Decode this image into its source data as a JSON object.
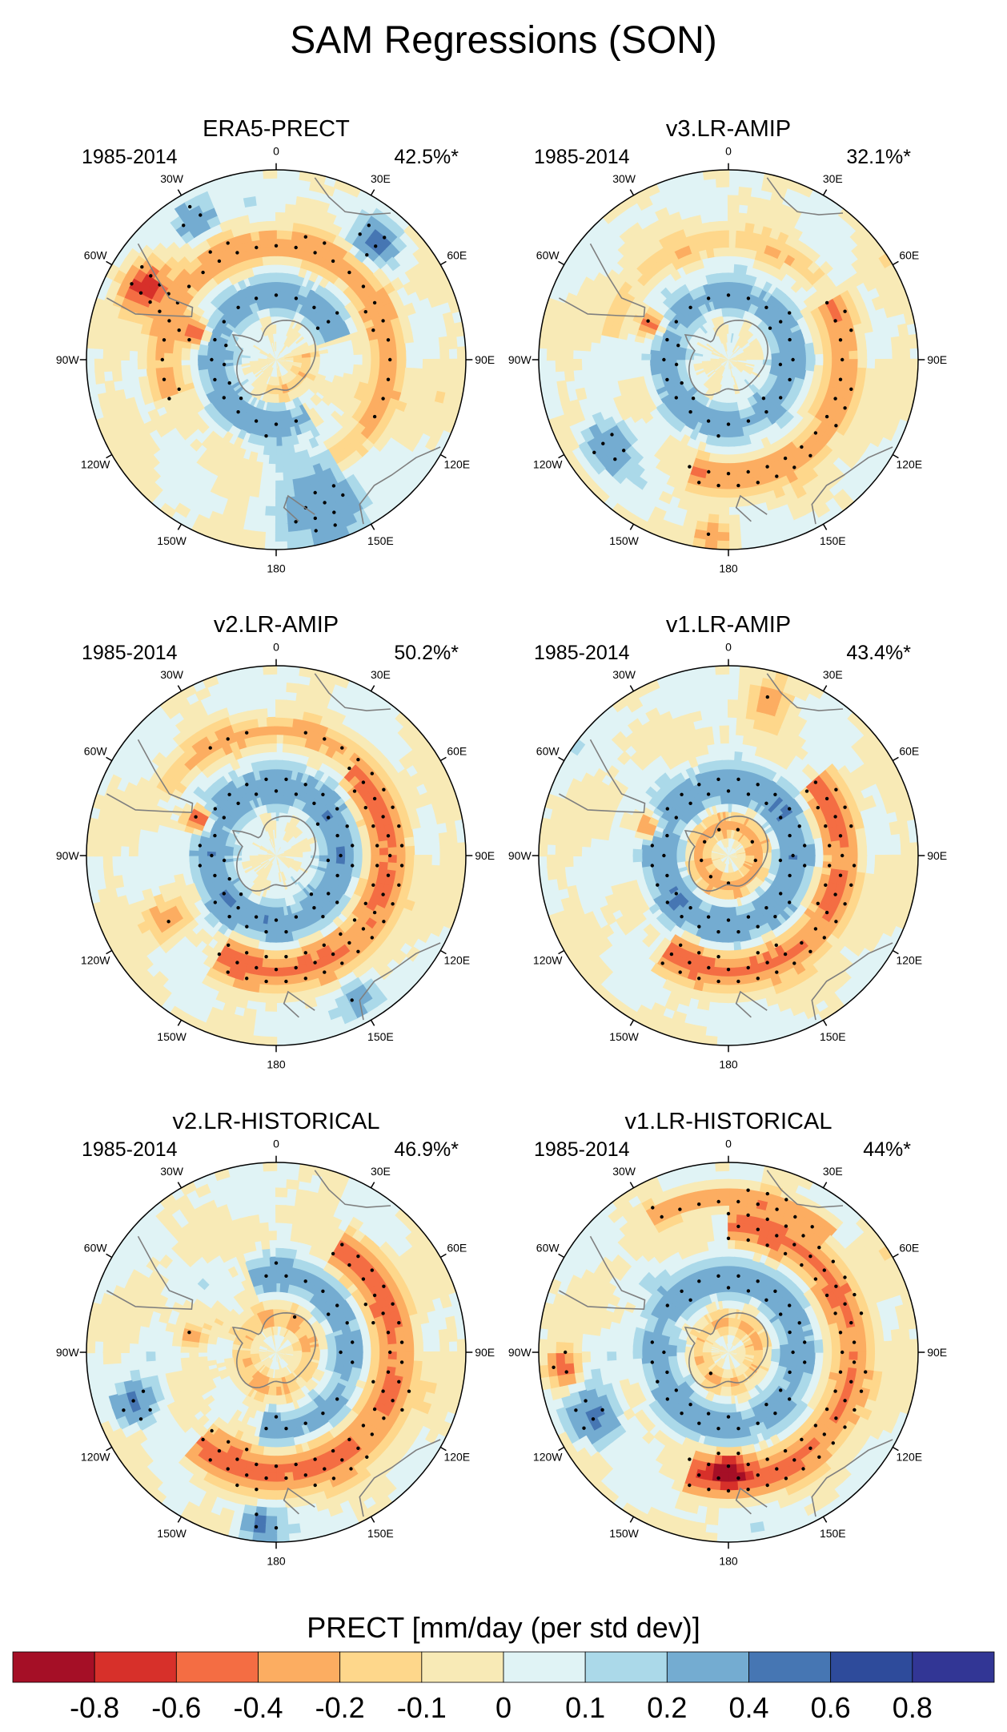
{
  "figure": {
    "title": "SAM Regressions (SON)",
    "colorbar_label": "PRECT [mm/day (per std dev)]"
  },
  "longitude_labels": [
    "0",
    "30E",
    "60E",
    "90E",
    "120E",
    "150E",
    "180",
    "150W",
    "120W",
    "90W",
    "60W",
    "30W"
  ],
  "chart_data": {
    "type": "polar-stereographic-contour-map",
    "variable": "PRECT",
    "units": "mm/day (per std dev)",
    "hemisphere": "South",
    "colorbar": {
      "levels": [
        "-0.8",
        "-0.6",
        "-0.4",
        "-0.2",
        "-0.1",
        "0",
        "0.1",
        "0.2",
        "0.4",
        "0.6",
        "0.8"
      ],
      "colors": [
        "#a50f26",
        "#d7302a",
        "#f46d43",
        "#fcad61",
        "#fed78b",
        "#f8eab6",
        "#e0f3f5",
        "#abd9e9",
        "#74acd1",
        "#4676b3",
        "#2e4b9b",
        "#323695"
      ]
    },
    "panels": [
      {
        "name": "ERA5-PRECT",
        "period": "1985-2014",
        "variance": "42.5%*",
        "features": [
          {
            "kind": "ring",
            "r": 0.33,
            "w": 0.22,
            "value": 0.3,
            "start": 150,
            "end": 70
          },
          {
            "kind": "ring",
            "r": 0.6,
            "w": 0.2,
            "value": -0.3,
            "start": 250,
            "end": 150
          },
          {
            "kind": "ring",
            "r": 0.16,
            "w": 0.13,
            "value": -0.2,
            "start": 80,
            "end": 200
          },
          {
            "kind": "blob",
            "lon": 300,
            "r": 0.8,
            "size": 0.14,
            "value": -0.75
          },
          {
            "kind": "blob",
            "lon": 288,
            "r": 0.45,
            "size": 0.07,
            "value": -0.6
          },
          {
            "kind": "blob",
            "lon": 160,
            "r": 0.78,
            "size": 0.28,
            "value": 0.35
          },
          {
            "kind": "blob",
            "lon": 40,
            "r": 0.82,
            "size": 0.14,
            "value": 0.4
          },
          {
            "kind": "blob",
            "lon": 330,
            "r": 0.85,
            "size": 0.12,
            "value": 0.4
          }
        ]
      },
      {
        "name": "v3.LR-AMIP",
        "period": "1985-2014",
        "variance": "32.1%*",
        "features": [
          {
            "kind": "ring",
            "r": 0.33,
            "w": 0.22,
            "value": 0.3,
            "start": 0,
            "end": 360
          },
          {
            "kind": "ring",
            "r": 0.62,
            "w": 0.2,
            "value": -0.35,
            "start": 60,
            "end": 200
          },
          {
            "kind": "ring",
            "r": 0.62,
            "w": 0.16,
            "value": -0.15,
            "start": 280,
            "end": 50
          },
          {
            "kind": "blob",
            "lon": 295,
            "r": 0.45,
            "size": 0.07,
            "value": -0.5
          },
          {
            "kind": "blob",
            "lon": 235,
            "r": 0.8,
            "size": 0.16,
            "value": 0.4
          },
          {
            "kind": "blob",
            "lon": 185,
            "r": 0.92,
            "size": 0.12,
            "value": -0.3
          }
        ]
      },
      {
        "name": "v2.LR-AMIP",
        "period": "1985-2014",
        "variance": "50.2%*",
        "features": [
          {
            "kind": "ring",
            "r": 0.35,
            "w": 0.24,
            "value": 0.35,
            "start": 0,
            "end": 360
          },
          {
            "kind": "ring",
            "r": 0.6,
            "w": 0.24,
            "value": -0.45,
            "start": 40,
            "end": 210
          },
          {
            "kind": "ring",
            "r": 0.66,
            "w": 0.18,
            "value": -0.2,
            "start": 300,
            "end": 40
          },
          {
            "kind": "blob",
            "lon": 295,
            "r": 0.45,
            "size": 0.07,
            "value": -0.75
          },
          {
            "kind": "blob",
            "lon": 240,
            "r": 0.68,
            "size": 0.13,
            "value": -0.3
          },
          {
            "kind": "blob",
            "lon": 150,
            "r": 0.85,
            "size": 0.14,
            "value": 0.35
          }
        ]
      },
      {
        "name": "v1.LR-AMIP",
        "period": "1985-2014",
        "variance": "43.4%*",
        "features": [
          {
            "kind": "ring",
            "r": 0.36,
            "w": 0.24,
            "value": 0.35,
            "start": 0,
            "end": 360
          },
          {
            "kind": "ring",
            "r": 0.6,
            "w": 0.22,
            "value": -0.45,
            "start": 50,
            "end": 215
          },
          {
            "kind": "ring",
            "r": 0.16,
            "w": 0.14,
            "value": -0.3,
            "start": 0,
            "end": 360
          },
          {
            "kind": "blob",
            "lon": 290,
            "r": 0.45,
            "size": 0.07,
            "value": -0.5
          },
          {
            "kind": "blob",
            "lon": 15,
            "r": 0.85,
            "size": 0.14,
            "value": -0.25
          }
        ]
      },
      {
        "name": "v2.LR-HISTORICAL",
        "period": "1985-2014",
        "variance": "46.9%*",
        "features": [
          {
            "kind": "ring",
            "r": 0.4,
            "w": 0.22,
            "value": 0.3,
            "start": 340,
            "end": 190
          },
          {
            "kind": "ring",
            "r": 0.63,
            "w": 0.26,
            "value": -0.45,
            "start": 30,
            "end": 220
          },
          {
            "kind": "ring",
            "r": 0.18,
            "w": 0.14,
            "value": -0.2,
            "start": 0,
            "end": 360
          },
          {
            "kind": "blob",
            "lon": 250,
            "r": 0.8,
            "size": 0.14,
            "value": 0.45
          },
          {
            "kind": "blob",
            "lon": 185,
            "r": 0.92,
            "size": 0.12,
            "value": 0.45
          },
          {
            "kind": "blob",
            "lon": 280,
            "r": 0.45,
            "size": 0.07,
            "value": -0.3
          }
        ]
      },
      {
        "name": "v1.LR-HISTORICAL",
        "period": "1985-2014",
        "variance": "44%*",
        "features": [
          {
            "kind": "ring",
            "r": 0.38,
            "w": 0.24,
            "value": 0.3,
            "start": 0,
            "end": 360
          },
          {
            "kind": "ring",
            "r": 0.66,
            "w": 0.22,
            "value": -0.45,
            "start": 0,
            "end": 200
          },
          {
            "kind": "ring",
            "r": 0.82,
            "w": 0.14,
            "value": -0.35,
            "start": 330,
            "end": 40
          },
          {
            "kind": "ring",
            "r": 0.16,
            "w": 0.13,
            "value": -0.2,
            "start": 0,
            "end": 360
          },
          {
            "kind": "blob",
            "lon": 180,
            "r": 0.62,
            "size": 0.12,
            "value": -0.7
          },
          {
            "kind": "blob",
            "lon": 245,
            "r": 0.8,
            "size": 0.16,
            "value": 0.5
          },
          {
            "kind": "blob",
            "lon": 265,
            "r": 0.88,
            "size": 0.1,
            "value": -0.6
          }
        ]
      }
    ]
  }
}
